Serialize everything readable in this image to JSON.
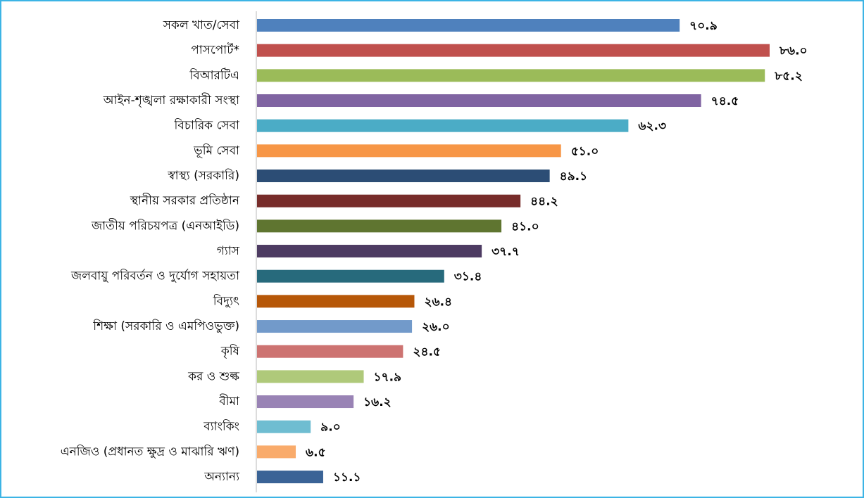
{
  "chart_data": {
    "type": "barh",
    "categories": [
      "সকল খাত/সেবা",
      "পাসপোর্ট*",
      "বিআরটিএ",
      "আইন-শৃঙ্খলা রক্ষাকারী সংস্থা",
      "বিচারিক সেবা",
      "ভূমি সেবা",
      "স্বাস্থ্য (সরকারি)",
      "স্থানীয় সরকার প্রতিষ্ঠান",
      "জাতীয় পরিচয়পত্র (এনআইডি)",
      "গ্যাস",
      "জলবায়ু পরিবর্তন ও দুর্যোগ সহায়তা",
      "বিদ্যুৎ",
      "শিক্ষা (সরকারি ও এমপিওভুক্ত)",
      "কৃষি",
      "কর ও শুল্ক",
      "বীমা",
      "ব্যাংকিং",
      "এনজিও (প্রধানত ক্ষুদ্র ও মাঝারি ঋণ)",
      "অন্যান্য"
    ],
    "values": [
      70.9,
      86.0,
      85.2,
      74.5,
      62.3,
      51.0,
      49.1,
      44.2,
      41.0,
      37.7,
      31.4,
      26.4,
      26.0,
      24.5,
      17.9,
      16.2,
      9.0,
      6.5,
      11.1
    ],
    "value_labels": [
      "৭০.৯",
      "৮৬.০",
      "৮৫.২",
      "৭৪.৫",
      "৬২.৩",
      "৫১.০",
      "৪৯.১",
      "৪৪.২",
      "৪১.০",
      "৩৭.৭",
      "৩১.৪",
      "২৬.৪",
      "২৬.০",
      "২৪.৫",
      "১৭.৯",
      "১৬.২",
      "৯.০",
      "৬.৫",
      "১১.১"
    ],
    "colors": [
      "#4f81bd",
      "#c0504d",
      "#9bbb59",
      "#8064a2",
      "#4bacc6",
      "#f79646",
      "#2c4d75",
      "#772c2a",
      "#5f7530",
      "#4d3b62",
      "#276a7c",
      "#b65708",
      "#729aca",
      "#cd7371",
      "#afc97a",
      "#9983b5",
      "#6fbdd1",
      "#f9ab6b",
      "#3a6396"
    ]
  }
}
